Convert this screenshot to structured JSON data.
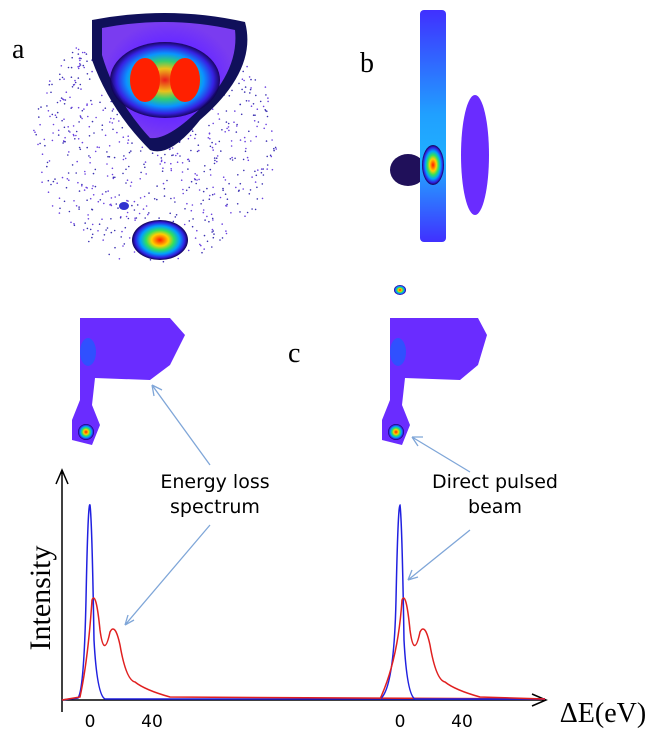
{
  "panels": {
    "a": "a",
    "b": "b",
    "c": "c"
  },
  "annotations": {
    "energy_loss": [
      "Energy loss",
      "spectrum"
    ],
    "direct_beam": [
      "Direct pulsed",
      "beam"
    ]
  },
  "plot": {
    "ylabel": "Intensity",
    "xlabel": "ΔE(eV)",
    "xticks": [
      "0",
      "40",
      "0",
      "40"
    ]
  }
}
